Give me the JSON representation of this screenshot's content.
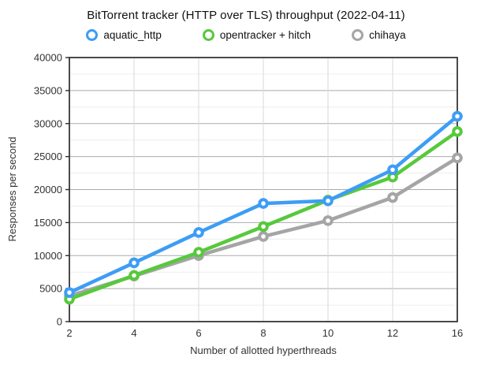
{
  "chart_data": {
    "type": "line",
    "title": "BitTorrent tracker (HTTP over TLS) throughput (2022-04-11)",
    "xlabel": "Number of allotted hyperthreads",
    "ylabel": "Responses per second",
    "categories": [
      2,
      4,
      6,
      8,
      10,
      12,
      16
    ],
    "x_tick_labels": [
      "2",
      "4",
      "6",
      "8",
      "10",
      "12",
      "16"
    ],
    "ylim": [
      0,
      40000
    ],
    "y_major_step": 5000,
    "y_minor_step": 2500,
    "grid": true,
    "legend_position": "top",
    "marker_style": "open-circle",
    "series": [
      {
        "name": "aquatic_http",
        "color": "#3D9DF5",
        "values": [
          4400,
          8900,
          13500,
          17900,
          18300,
          23000,
          31100
        ]
      },
      {
        "name": "opentracker + hitch",
        "color": "#57C93C",
        "values": [
          3400,
          7000,
          10500,
          14400,
          18400,
          21900,
          28800
        ]
      },
      {
        "name": "chihaya",
        "color": "#A5A5A5",
        "values": [
          3900,
          6900,
          10000,
          12900,
          15300,
          18800,
          24800
        ]
      }
    ],
    "colors": {
      "axis": "#2B2B2B",
      "major_grid": "#ABABAB",
      "minor_grid": "#EDEDED",
      "vertical_grid": "#D9D9D9",
      "tick_text": "#333333",
      "background": "#FFFFFF"
    }
  }
}
